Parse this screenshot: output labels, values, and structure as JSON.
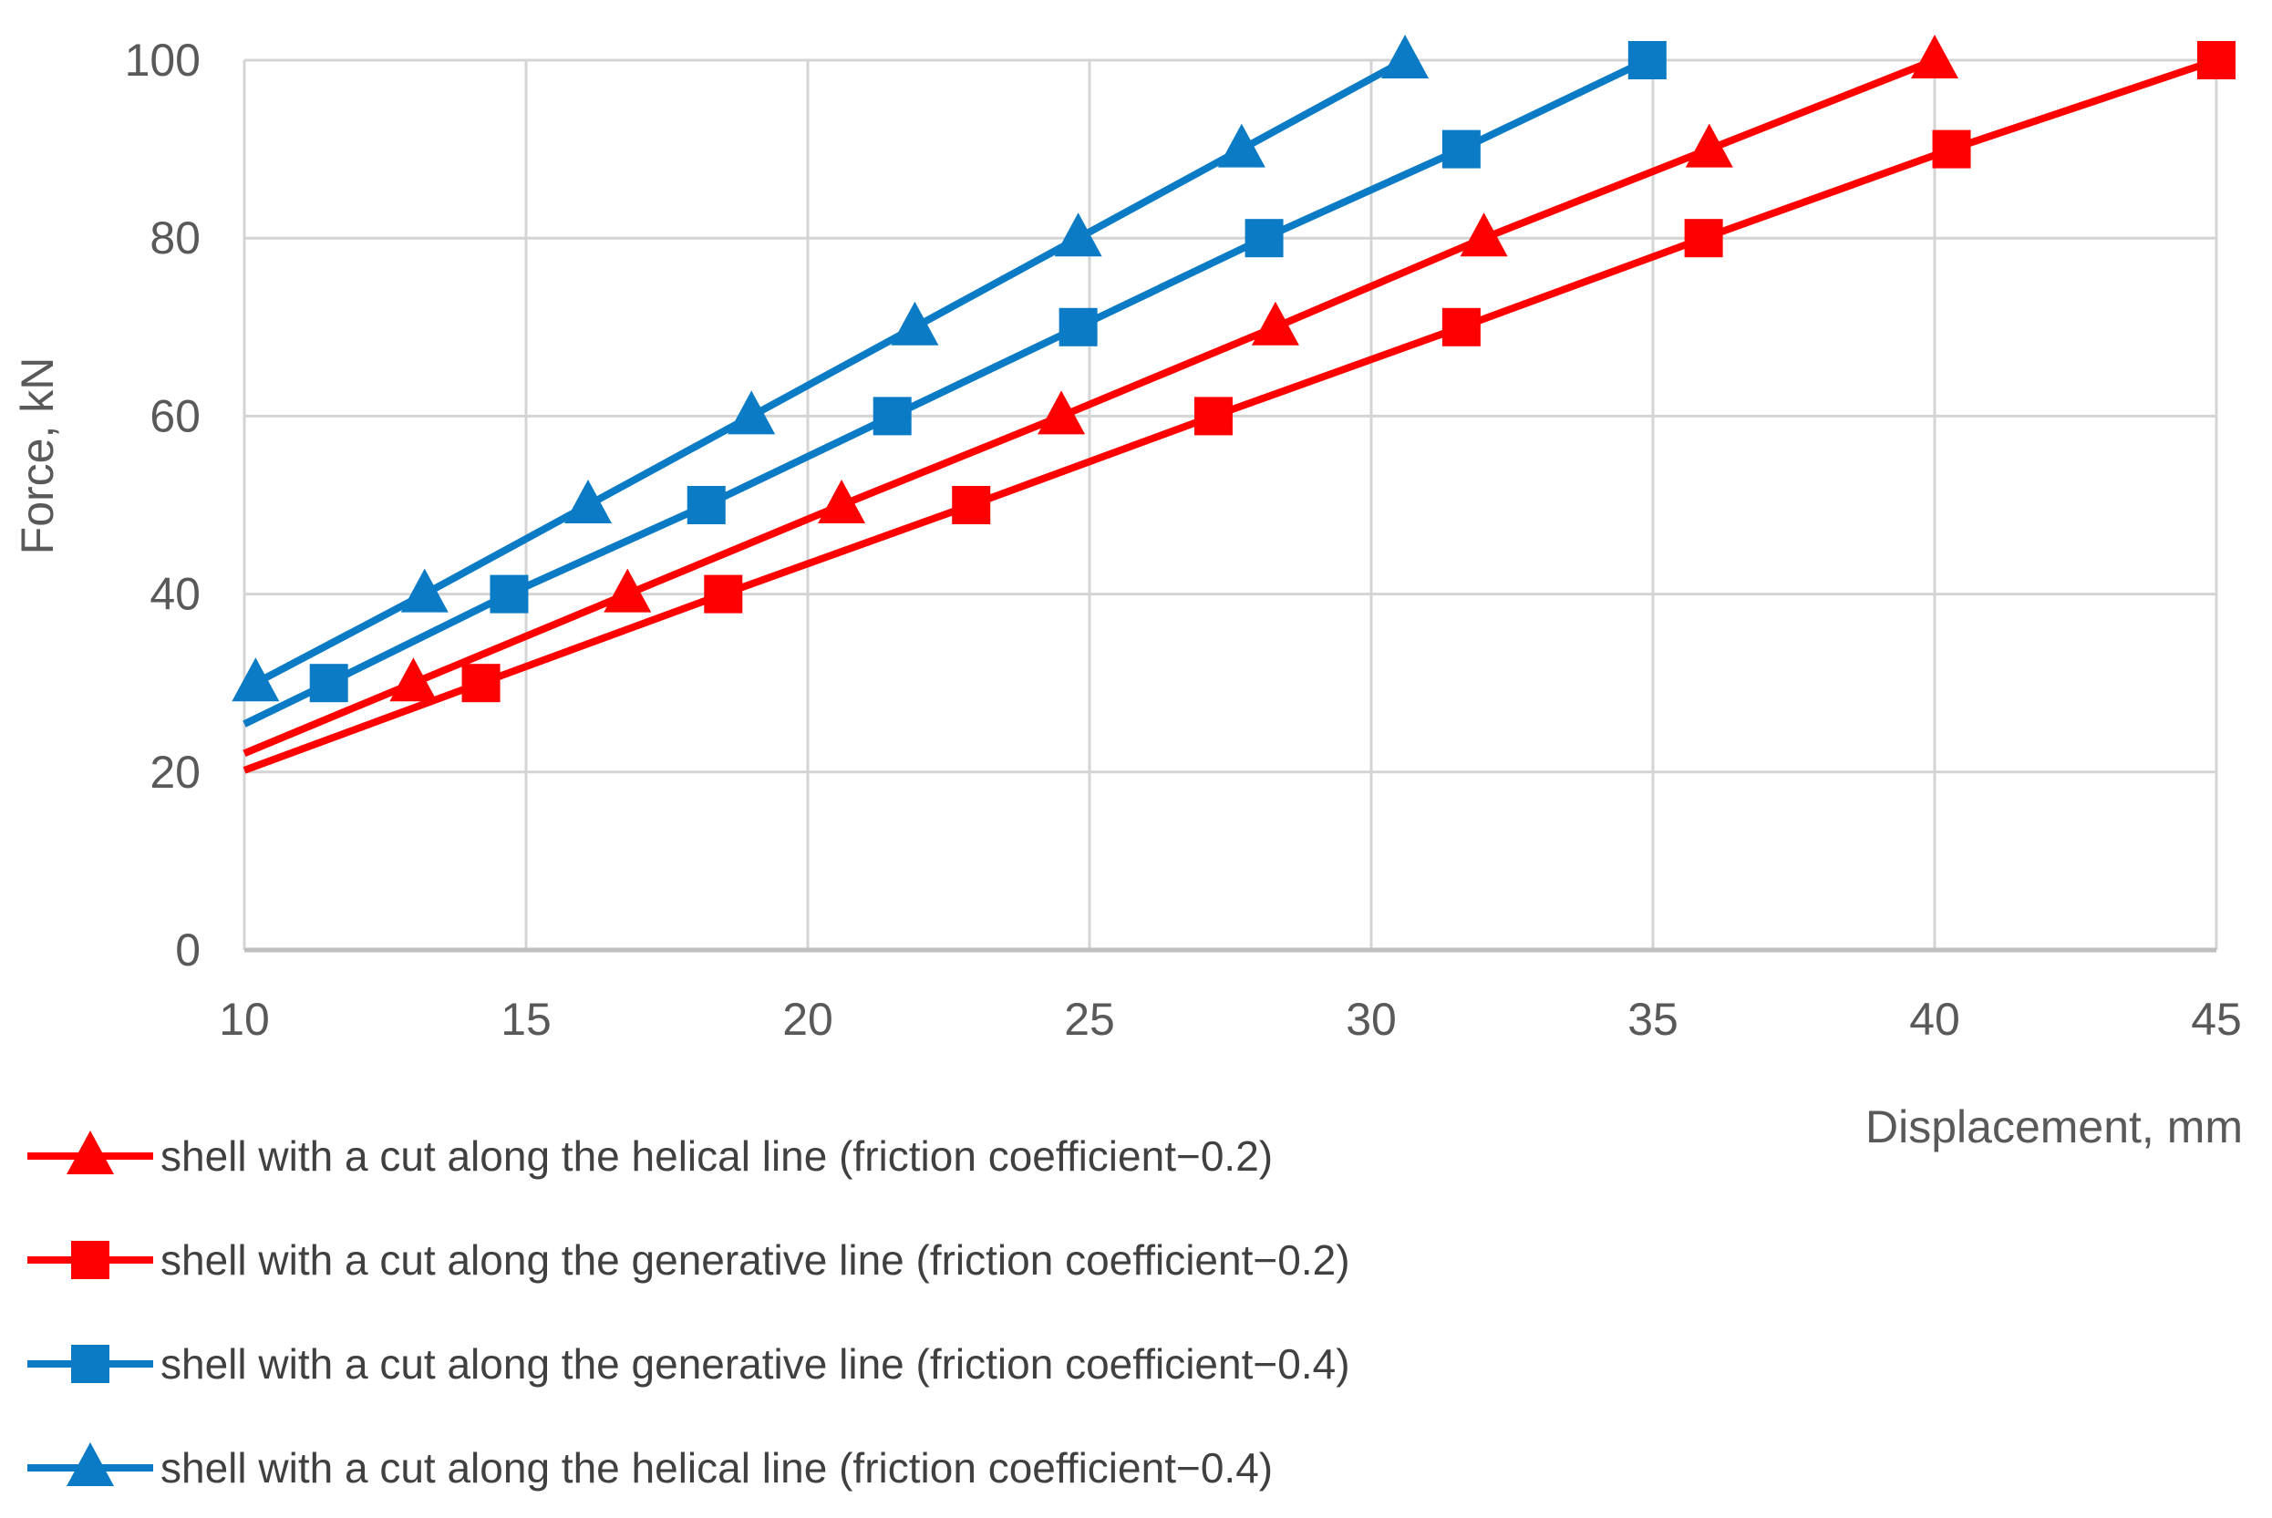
{
  "chart_data": {
    "type": "line",
    "title": "",
    "xlabel": "Displacement, mm",
    "ylabel": "Force, kN",
    "xlim": [
      10,
      45
    ],
    "ylim": [
      0,
      100
    ],
    "x_ticks": [
      10,
      15,
      20,
      25,
      30,
      35,
      40,
      45
    ],
    "y_ticks": [
      0,
      20,
      40,
      60,
      80,
      100
    ],
    "grid": true,
    "legend_position": "bottom-left",
    "series": [
      {
        "name": "shell with a cut along the helical line (friction coefficient−0.2)",
        "color": "#FF0000",
        "marker": "triangle",
        "line_start": [
          10,
          22.1
        ],
        "points": [
          [
            13.0,
            30
          ],
          [
            16.8,
            40
          ],
          [
            20.6,
            50
          ],
          [
            24.5,
            60
          ],
          [
            28.3,
            70
          ],
          [
            32.0,
            80
          ],
          [
            36.0,
            90
          ],
          [
            40.0,
            100
          ]
        ]
      },
      {
        "name": "shell with a cut along the generative line (friction coefficient−0.2)",
        "color": "#FF0000",
        "marker": "square",
        "line_start": [
          10,
          20.2
        ],
        "points": [
          [
            14.2,
            30
          ],
          [
            18.5,
            40
          ],
          [
            22.9,
            50
          ],
          [
            27.2,
            60
          ],
          [
            31.6,
            70
          ],
          [
            35.9,
            80
          ],
          [
            40.3,
            90
          ],
          [
            45.0,
            100
          ]
        ]
      },
      {
        "name": "shell with a cut along the generative line (friction coefficient−0.4)",
        "color": "#0C7BC6",
        "marker": "square",
        "line_start": [
          10,
          25.4
        ],
        "points": [
          [
            11.5,
            30
          ],
          [
            14.7,
            40
          ],
          [
            18.2,
            50
          ],
          [
            21.5,
            60
          ],
          [
            24.8,
            70
          ],
          [
            28.1,
            80
          ],
          [
            31.6,
            90
          ],
          [
            34.9,
            100
          ]
        ]
      },
      {
        "name": "shell with a cut along the helical line (friction coefficient−0.4)",
        "color": "#0C7BC6",
        "marker": "triangle",
        "line_start": [
          10,
          29.3
        ],
        "points": [
          [
            10.2,
            30
          ],
          [
            13.2,
            40
          ],
          [
            16.1,
            50
          ],
          [
            19.0,
            60
          ],
          [
            21.9,
            70
          ],
          [
            24.8,
            80
          ],
          [
            27.7,
            90
          ],
          [
            30.6,
            100
          ]
        ]
      }
    ]
  },
  "style": {
    "series_red": "#FF0000",
    "series_blue": "#0C7BC6",
    "gridline_color": "#D4D4D4",
    "baseline_color": "#BFBFBF",
    "axis_text_color": "#595959",
    "legend_text_color": "#404040",
    "background": "#FFFFFF"
  }
}
